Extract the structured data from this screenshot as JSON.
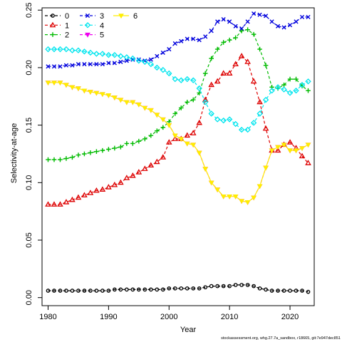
{
  "chart_data": {
    "type": "line",
    "xlabel": "Year",
    "ylabel": "Selectivity-at-age",
    "xlim": [
      1979,
      2024
    ],
    "ylim": [
      -0.007,
      0.252
    ],
    "x_ticks": [
      "1980",
      "1990",
      "2000",
      "2010",
      "2020"
    ],
    "y_ticks": [
      "0.00",
      "0.05",
      "0.10",
      "0.15",
      "0.20",
      "0.25"
    ],
    "legend_position": "top-left",
    "grid": false,
    "footnote": "stockassessment.org, whg.27.7a_sandbox, r18665, git:7e947dec851",
    "x": [
      1980,
      1981,
      1982,
      1983,
      1984,
      1985,
      1986,
      1987,
      1988,
      1989,
      1990,
      1991,
      1992,
      1993,
      1994,
      1995,
      1996,
      1997,
      1998,
      1999,
      2000,
      2001,
      2002,
      2003,
      2004,
      2005,
      2006,
      2007,
      2008,
      2009,
      2010,
      2011,
      2012,
      2013,
      2014,
      2015,
      2016,
      2017,
      2018,
      2019,
      2020,
      2021,
      2022,
      2023
    ],
    "series": [
      {
        "name": "0",
        "color": "#000000",
        "marker": "circle",
        "values": [
          0.006,
          0.006,
          0.006,
          0.006,
          0.006,
          0.006,
          0.006,
          0.006,
          0.006,
          0.006,
          0.006,
          0.007,
          0.007,
          0.007,
          0.007,
          0.007,
          0.007,
          0.007,
          0.007,
          0.007,
          0.008,
          0.008,
          0.008,
          0.008,
          0.008,
          0.008,
          0.009,
          0.01,
          0.01,
          0.01,
          0.01,
          0.011,
          0.011,
          0.011,
          0.01,
          0.008,
          0.007,
          0.006,
          0.006,
          0.006,
          0.006,
          0.006,
          0.006,
          0.005
        ]
      },
      {
        "name": "1",
        "color": "#dd0000",
        "marker": "triangle",
        "values": [
          0.081,
          0.081,
          0.081,
          0.083,
          0.085,
          0.087,
          0.089,
          0.091,
          0.093,
          0.094,
          0.096,
          0.098,
          0.1,
          0.104,
          0.106,
          0.109,
          0.112,
          0.115,
          0.118,
          0.122,
          0.135,
          0.138,
          0.138,
          0.141,
          0.143,
          0.152,
          0.172,
          0.185,
          0.188,
          0.195,
          0.195,
          0.203,
          0.21,
          0.205,
          0.188,
          0.17,
          0.147,
          0.128,
          0.128,
          0.133,
          0.135,
          0.13,
          0.123,
          0.117
        ]
      },
      {
        "name": "2",
        "color": "#00bb00",
        "marker": "plus",
        "values": [
          0.12,
          0.12,
          0.12,
          0.121,
          0.122,
          0.124,
          0.125,
          0.126,
          0.127,
          0.128,
          0.129,
          0.13,
          0.131,
          0.134,
          0.134,
          0.136,
          0.138,
          0.141,
          0.145,
          0.148,
          0.153,
          0.16,
          0.165,
          0.17,
          0.172,
          0.178,
          0.195,
          0.208,
          0.216,
          0.222,
          0.224,
          0.226,
          0.232,
          0.233,
          0.229,
          0.216,
          0.202,
          0.183,
          0.182,
          0.185,
          0.19,
          0.19,
          0.184,
          0.18
        ]
      },
      {
        "name": "3",
        "color": "#0000dd",
        "marker": "cross",
        "values": [
          0.201,
          0.201,
          0.201,
          0.202,
          0.202,
          0.203,
          0.203,
          0.203,
          0.203,
          0.203,
          0.204,
          0.204,
          0.205,
          0.206,
          0.207,
          0.207,
          0.206,
          0.207,
          0.21,
          0.213,
          0.216,
          0.221,
          0.223,
          0.225,
          0.225,
          0.224,
          0.227,
          0.232,
          0.24,
          0.242,
          0.24,
          0.236,
          0.234,
          0.24,
          0.247,
          0.246,
          0.245,
          0.24,
          0.236,
          0.235,
          0.237,
          0.24,
          0.244,
          0.244
        ]
      },
      {
        "name": "4",
        "color": "#00e5ee",
        "marker": "diamond",
        "values": [
          0.216,
          0.216,
          0.216,
          0.216,
          0.215,
          0.215,
          0.214,
          0.213,
          0.212,
          0.212,
          0.211,
          0.211,
          0.21,
          0.209,
          0.208,
          0.206,
          0.205,
          0.203,
          0.2,
          0.198,
          0.195,
          0.19,
          0.189,
          0.19,
          0.189,
          0.182,
          0.17,
          0.16,
          0.155,
          0.154,
          0.155,
          0.151,
          0.146,
          0.146,
          0.152,
          0.16,
          0.172,
          0.18,
          0.183,
          0.181,
          0.178,
          0.18,
          0.185,
          0.188
        ]
      },
      {
        "name": "5",
        "color": "#ee00ee",
        "marker": "triangle-down",
        "values": [
          0.187,
          0.187,
          0.187,
          0.185,
          0.183,
          0.182,
          0.18,
          0.179,
          0.178,
          0.177,
          0.176,
          0.174,
          0.172,
          0.17,
          0.17,
          0.168,
          0.165,
          0.163,
          0.159,
          0.155,
          0.15,
          0.141,
          0.138,
          0.134,
          0.133,
          0.126,
          0.112,
          0.1,
          0.094,
          0.088,
          0.088,
          0.088,
          0.084,
          0.083,
          0.087,
          0.097,
          0.113,
          0.128,
          0.131,
          0.133,
          0.128,
          0.128,
          0.13,
          0.133
        ]
      },
      {
        "name": "6",
        "color": "#ffee00",
        "marker": "triangle-down",
        "values": [
          0.187,
          0.187,
          0.187,
          0.185,
          0.183,
          0.182,
          0.18,
          0.179,
          0.178,
          0.177,
          0.176,
          0.174,
          0.172,
          0.17,
          0.17,
          0.168,
          0.165,
          0.163,
          0.159,
          0.155,
          0.15,
          0.141,
          0.138,
          0.134,
          0.133,
          0.126,
          0.112,
          0.1,
          0.094,
          0.088,
          0.088,
          0.088,
          0.084,
          0.083,
          0.087,
          0.097,
          0.113,
          0.128,
          0.131,
          0.133,
          0.128,
          0.128,
          0.13,
          0.133
        ]
      }
    ]
  }
}
